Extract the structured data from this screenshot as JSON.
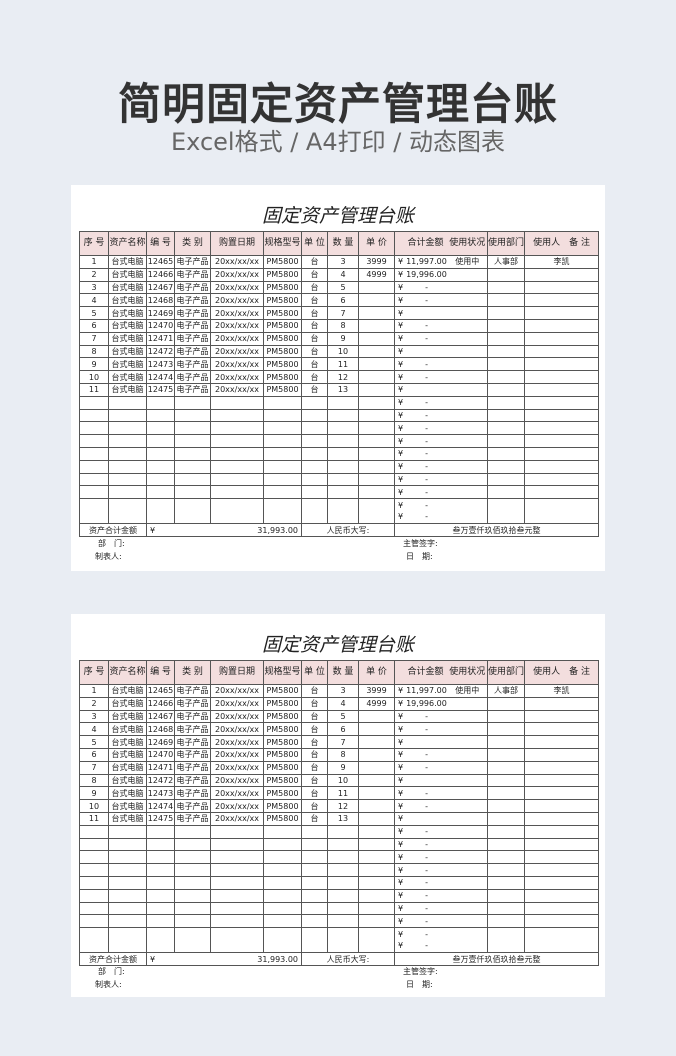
{
  "header": {
    "title": "简明固定资产管理台账",
    "subtitle": "Excel格式 / A4打印 / 动态图表"
  },
  "sheet": {
    "title": "固定资产管理台账",
    "columns": [
      "序 号",
      "资产名称",
      "编 号",
      "类 别",
      "购置日期",
      "规格型号",
      "单 位",
      "数 量",
      "单 价",
      "合计金额",
      "使用状况",
      "使用部门",
      "使用人　备 注"
    ],
    "currency": "¥",
    "rows": [
      {
        "no": "1",
        "name": "台式电脑",
        "code": "12465",
        "type": "电子产品",
        "date": "20xx/xx/xx",
        "model": "PM5800",
        "unit": "台",
        "qty": "3",
        "price": "3999",
        "amount": "11,997.00",
        "status": "使用中",
        "dept": "人事部",
        "user": "李凯"
      },
      {
        "no": "2",
        "name": "台式电脑",
        "code": "12466",
        "type": "电子产品",
        "date": "20xx/xx/xx",
        "model": "PM5800",
        "unit": "台",
        "qty": "4",
        "price": "4999",
        "amount": "19,996.00",
        "status": "",
        "dept": "",
        "user": ""
      },
      {
        "no": "3",
        "name": "台式电脑",
        "code": "12467",
        "type": "电子产品",
        "date": "20xx/xx/xx",
        "model": "PM5800",
        "unit": "台",
        "qty": "5",
        "price": "",
        "amount": "-",
        "status": "",
        "dept": "",
        "user": ""
      },
      {
        "no": "4",
        "name": "台式电脑",
        "code": "12468",
        "type": "电子产品",
        "date": "20xx/xx/xx",
        "model": "PM5800",
        "unit": "台",
        "qty": "6",
        "price": "",
        "amount": "-",
        "status": "",
        "dept": "",
        "user": ""
      },
      {
        "no": "5",
        "name": "台式电脑",
        "code": "12469",
        "type": "电子产品",
        "date": "20xx/xx/xx",
        "model": "PM5800",
        "unit": "台",
        "qty": "7",
        "price": "",
        "amount": "",
        "status": "",
        "dept": "",
        "user": ""
      },
      {
        "no": "6",
        "name": "台式电脑",
        "code": "12470",
        "type": "电子产品",
        "date": "20xx/xx/xx",
        "model": "PM5800",
        "unit": "台",
        "qty": "8",
        "price": "",
        "amount": "-",
        "status": "",
        "dept": "",
        "user": ""
      },
      {
        "no": "7",
        "name": "台式电脑",
        "code": "12471",
        "type": "电子产品",
        "date": "20xx/xx/xx",
        "model": "PM5800",
        "unit": "台",
        "qty": "9",
        "price": "",
        "amount": "-",
        "status": "",
        "dept": "",
        "user": ""
      },
      {
        "no": "8",
        "name": "台式电脑",
        "code": "12472",
        "type": "电子产品",
        "date": "20xx/xx/xx",
        "model": "PM5800",
        "unit": "台",
        "qty": "10",
        "price": "",
        "amount": "",
        "status": "",
        "dept": "",
        "user": ""
      },
      {
        "no": "9",
        "name": "台式电脑",
        "code": "12473",
        "type": "电子产品",
        "date": "20xx/xx/xx",
        "model": "PM5800",
        "unit": "台",
        "qty": "11",
        "price": "",
        "amount": "-",
        "status": "",
        "dept": "",
        "user": ""
      },
      {
        "no": "10",
        "name": "台式电脑",
        "code": "12474",
        "type": "电子产品",
        "date": "20xx/xx/xx",
        "model": "PM5800",
        "unit": "台",
        "qty": "12",
        "price": "",
        "amount": "-",
        "status": "",
        "dept": "",
        "user": ""
      },
      {
        "no": "11",
        "name": "台式电脑",
        "code": "12475",
        "type": "电子产品",
        "date": "20xx/xx/xx",
        "model": "PM5800",
        "unit": "台",
        "qty": "13",
        "price": "",
        "amount": "",
        "status": "",
        "dept": "",
        "user": ""
      },
      {
        "amount": "-"
      },
      {
        "amount": "-"
      },
      {
        "amount": "-"
      },
      {
        "amount": "-"
      },
      {
        "amount": "-"
      },
      {
        "amount": "-"
      },
      {
        "amount": "-"
      },
      {
        "amount": "-"
      }
    ],
    "last_row_amounts": [
      "-",
      "-"
    ],
    "footer": {
      "total_label": "资产合计金额",
      "total_value": "31,993.00",
      "rmb_label": "人民币大写:",
      "rmb_value": "叁万壹仟玖佰玖拾叁元整"
    },
    "signatures": {
      "dept": "部　门:",
      "maker": "制表人:",
      "supervisor": "主管签字:",
      "date": "日　期:"
    }
  }
}
